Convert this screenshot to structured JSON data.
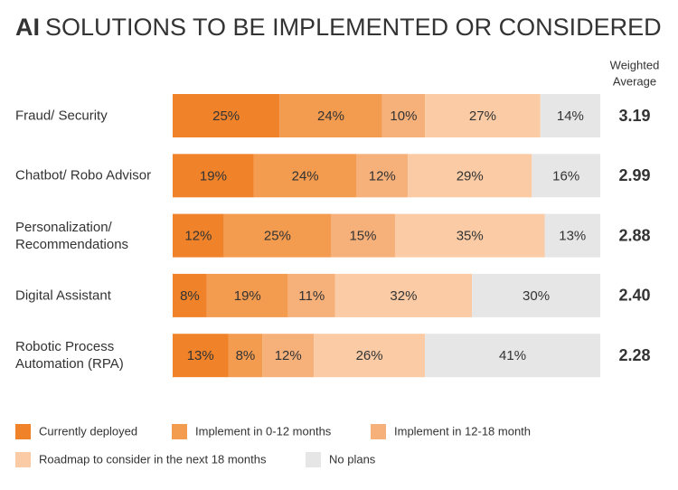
{
  "chart_data": {
    "type": "stacked_barh",
    "title_bold": "AI",
    "title": "SOLUTIONS TO BE IMPLEMENTED OR CONSIDERED",
    "categories": [
      "Fraud/ Security",
      "Chatbot/ Robo Advisor",
      "Personalization/\nRecommendations",
      "Digital Assistant",
      "Robotic Process\nAutomation (RPA)"
    ],
    "xlim": [
      0,
      100
    ],
    "series": [
      {
        "name": "Currently deployed",
        "color": "#f0832a",
        "values": [
          25,
          19,
          12,
          8,
          13
        ],
        "value_labels": [
          "25%",
          "19%",
          "12%",
          "8%",
          "13%"
        ]
      },
      {
        "name": "Implement in 0-12 months",
        "color": "#f39b4f",
        "values": [
          24,
          24,
          25,
          19,
          8
        ],
        "value_labels": [
          "24%",
          "24%",
          "25%",
          "19%",
          "8%"
        ]
      },
      {
        "name": "Implement in 12-18 month",
        "color": "#f6b07a",
        "values": [
          10,
          12,
          15,
          11,
          12
        ],
        "value_labels": [
          "10%",
          "12%",
          "15%",
          "11%",
          "12%"
        ]
      },
      {
        "name": "Roadmap to consider in the next 18 months",
        "color": "#facba4",
        "values": [
          27,
          29,
          35,
          32,
          26
        ],
        "value_labels": [
          "27%",
          "29%",
          "35%",
          "32%",
          "26%"
        ]
      },
      {
        "name": "No plans",
        "color": "#e6e6e7",
        "values": [
          14,
          16,
          13,
          30,
          41
        ],
        "value_labels": [
          "14%",
          "16%",
          "13%",
          "30%",
          "41%"
        ]
      }
    ],
    "weighted_average_header": [
      "Weighted",
      "Average"
    ],
    "weighted_average": [
      3.19,
      2.99,
      2.88,
      2.4,
      2.28
    ],
    "weighted_average_labels": [
      "3.19",
      "2.99",
      "2.88",
      "2.40",
      "2.28"
    ]
  }
}
